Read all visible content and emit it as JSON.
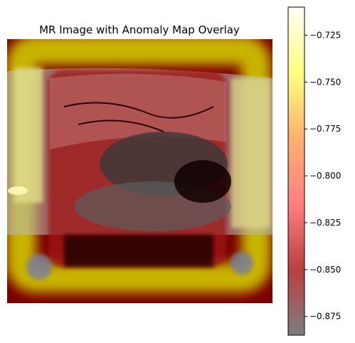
{
  "chart_data": {
    "type": "heatmap",
    "title": "MR Image with Anomaly Map Overlay",
    "axes_visible": false,
    "colormap": "hot",
    "overlay_alpha": 0.5,
    "colorbar": {
      "vmin": -0.885,
      "vmax": -0.71,
      "ticks": [
        -0.725,
        -0.75,
        -0.775,
        -0.8,
        -0.825,
        -0.85,
        -0.875
      ],
      "tick_labels": [
        "−0.725",
        "−0.750",
        "−0.775",
        "−0.800",
        "−0.825",
        "−0.850",
        "−0.875"
      ]
    },
    "anomaly_regions": [
      {
        "region": "outer-frame",
        "value": -0.74
      },
      {
        "region": "inner-region",
        "value": -0.86
      },
      {
        "region": "lower-corners",
        "value": -0.885
      }
    ]
  }
}
